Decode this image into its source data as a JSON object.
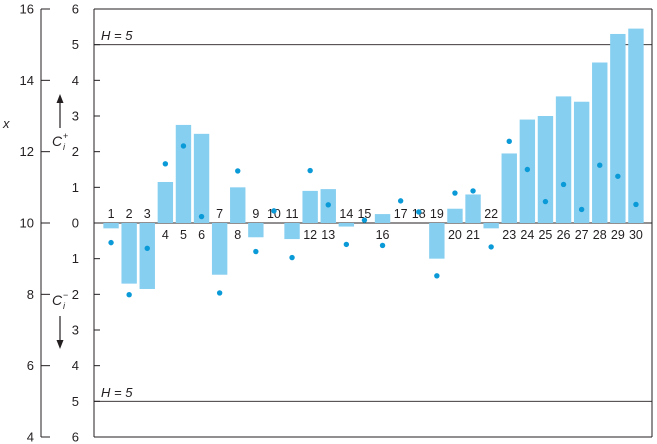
{
  "chart_data": {
    "type": "bar",
    "left_axis": {
      "label": "x",
      "ticks": [
        4,
        6,
        8,
        10,
        12,
        14,
        16
      ],
      "ylim": [
        4,
        16
      ]
    },
    "right_axis": {
      "upper_ticks": [
        "6",
        "5",
        "4",
        "3",
        "2",
        "1",
        "0"
      ],
      "lower_ticks": [
        "1",
        "2",
        "3",
        "4",
        "5",
        "6"
      ],
      "ylim": [
        -6,
        6
      ]
    },
    "upper_label": {
      "symbol": "C",
      "superscript": "+",
      "subscript": "i"
    },
    "lower_label": {
      "symbol": "C",
      "superscript": "−",
      "subscript": "i"
    },
    "decision_interval": {
      "upper_label": "H = 5",
      "lower_label": "H = 5",
      "value": 5
    },
    "observations": [
      "1",
      "2",
      "3",
      "4",
      "5",
      "6",
      "7",
      "8",
      "9",
      "10",
      "11",
      "12",
      "13",
      "14",
      "15",
      "16",
      "17",
      "18",
      "19",
      "20",
      "21",
      "22",
      "23",
      "24",
      "25",
      "26",
      "27",
      "28",
      "29",
      "30"
    ],
    "series": [
      {
        "values": [
          -0.15,
          -1.7,
          -1.85,
          1.15,
          2.75,
          2.5,
          -1.45,
          1.0,
          -0.4,
          0,
          -0.45,
          0.9,
          0.95,
          -0.1,
          0,
          0.25,
          0,
          0,
          -1.0,
          0.4,
          0.8,
          -0.15,
          1.95,
          2.9,
          3.0,
          3.55,
          3.4,
          4.5,
          5.3,
          5.45
        ]
      },
      {
        "values": [
          9.45,
          7.99,
          9.29,
          11.66,
          12.16,
          10.18,
          8.04,
          11.46,
          9.2,
          10.34,
          9.03,
          11.47,
          10.51,
          9.4,
          10.08,
          9.37,
          10.62,
          10.31,
          8.52,
          10.84,
          10.9,
          9.33,
          12.29,
          11.5,
          10.6,
          11.08,
          10.38,
          11.62,
          11.31,
          10.52
        ]
      }
    ]
  }
}
